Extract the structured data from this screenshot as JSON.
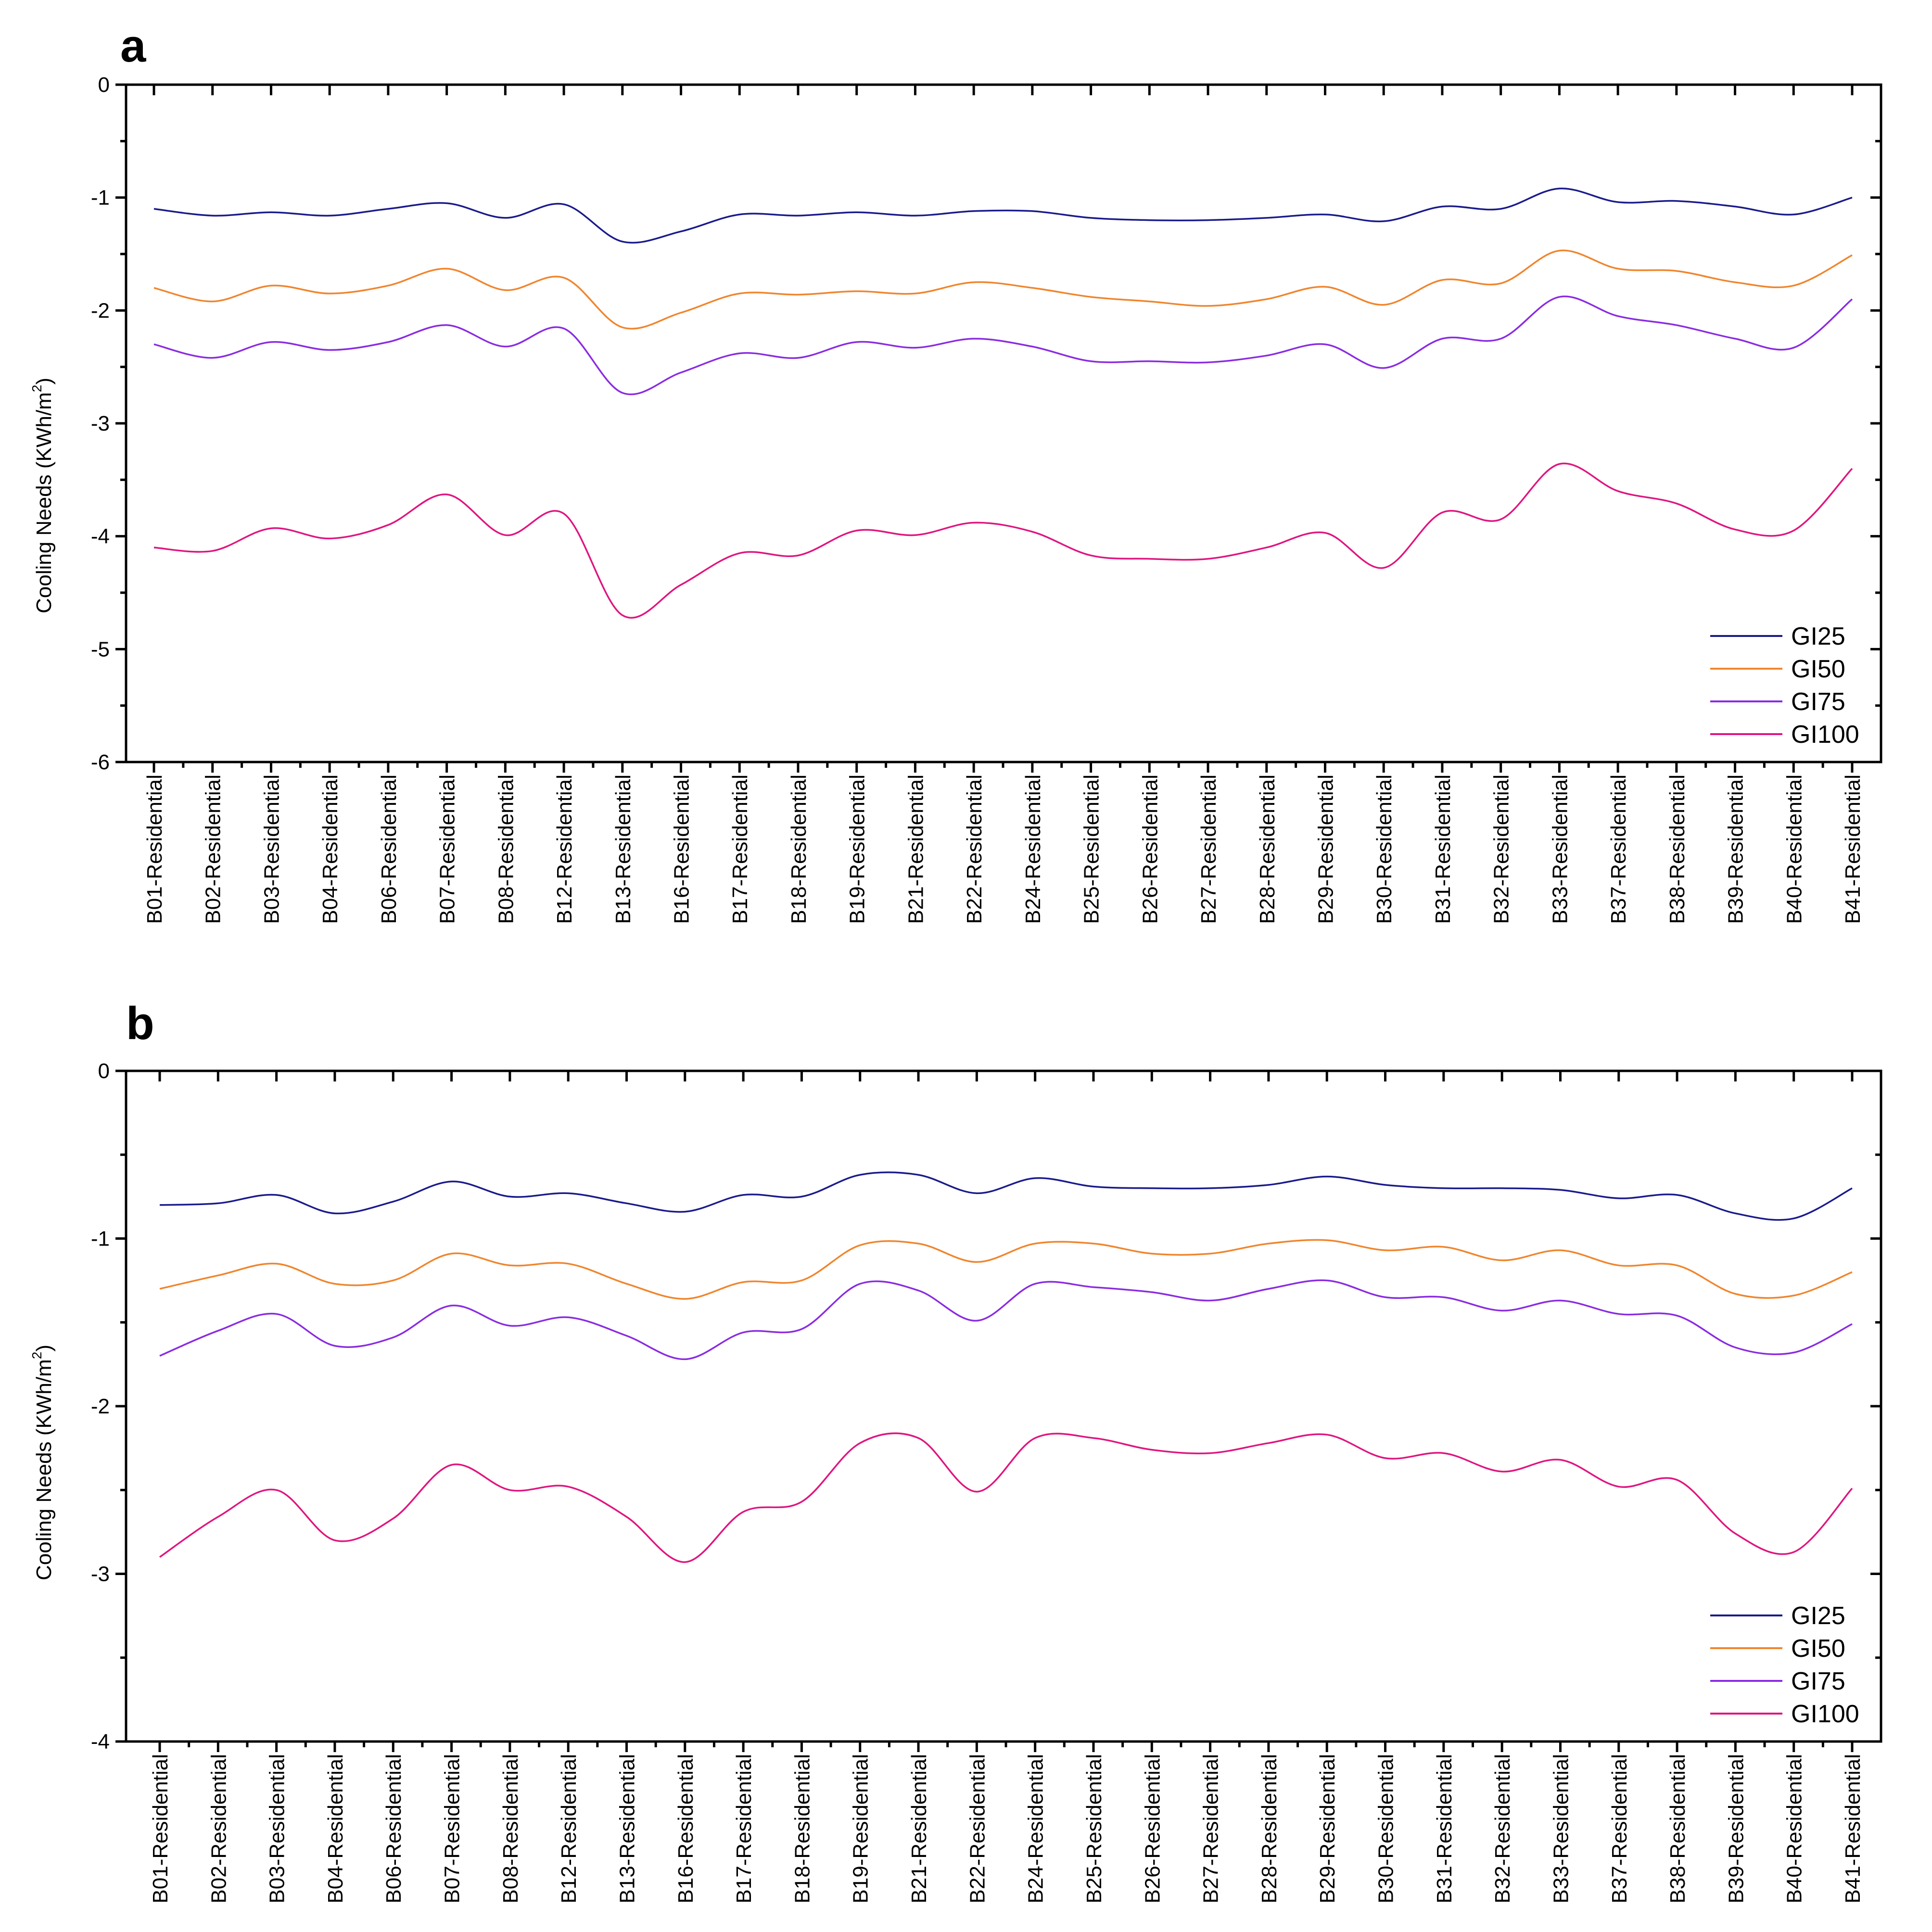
{
  "chart_data": [
    {
      "panel": "a",
      "type": "line",
      "title": "",
      "xlabel": "",
      "ylabel": "Cooling Needs (KWh/m2)",
      "ylabel_main": "Cooling Needs (KWh/m",
      "ylabel_sup": "2",
      "ylabel_close": ")",
      "ylim": [
        -6,
        0
      ],
      "yticks": [
        0,
        -1,
        -2,
        -3,
        -4,
        -5,
        -6
      ],
      "ytick_labels": [
        "0",
        "-1",
        "-2",
        "-3",
        "-4",
        "-5",
        "-6"
      ],
      "grid": false,
      "legend_position": "bottom-right",
      "categories": [
        "B01-Residential",
        "B02-Residential",
        "B03-Residential",
        "B04-Residential",
        "B06-Residential",
        "B07-Residential",
        "B08-Residential",
        "B12-Residential",
        "B13-Residential",
        "B16-Residential",
        "B17-Residential",
        "B18-Residential",
        "B19-Residential",
        "B21-Residential",
        "B22-Residential",
        "B24-Residential",
        "B25-Residential",
        "B26-Residential",
        "B27-Residential",
        "B28-Residential",
        "B29-Residential",
        "B30-Residential",
        "B31-Residential",
        "B32-Residential",
        "B33-Residential",
        "B37-Residential",
        "B38-Residential",
        "B39-Residential",
        "B40-Residential",
        "B41-Residential"
      ],
      "series": [
        {
          "name": "GI25",
          "color": "#1a1a8c",
          "values": [
            -1.1,
            -1.16,
            -1.13,
            -1.16,
            -1.1,
            -1.05,
            -1.18,
            -1.06,
            -1.39,
            -1.3,
            -1.15,
            -1.16,
            -1.13,
            -1.16,
            -1.12,
            -1.12,
            -1.18,
            -1.2,
            -1.2,
            -1.18,
            -1.15,
            -1.21,
            -1.08,
            -1.1,
            -0.92,
            -1.04,
            -1.03,
            -1.08,
            -1.15,
            -1.0
          ]
        },
        {
          "name": "GI50",
          "color": "#f0852d",
          "values": [
            -1.8,
            -1.92,
            -1.78,
            -1.85,
            -1.78,
            -1.63,
            -1.82,
            -1.71,
            -2.15,
            -2.02,
            -1.85,
            -1.86,
            -1.83,
            -1.85,
            -1.75,
            -1.8,
            -1.88,
            -1.92,
            -1.96,
            -1.9,
            -1.79,
            -1.95,
            -1.73,
            -1.76,
            -1.47,
            -1.63,
            -1.65,
            -1.75,
            -1.78,
            -1.51
          ]
        },
        {
          "name": "GI75",
          "color": "#8a2be2",
          "values": [
            -2.3,
            -2.42,
            -2.28,
            -2.35,
            -2.28,
            -2.13,
            -2.32,
            -2.16,
            -2.73,
            -2.55,
            -2.38,
            -2.42,
            -2.28,
            -2.33,
            -2.25,
            -2.32,
            -2.45,
            -2.45,
            -2.46,
            -2.4,
            -2.3,
            -2.51,
            -2.25,
            -2.25,
            -1.88,
            -2.05,
            -2.13,
            -2.25,
            -2.33,
            -1.9
          ]
        },
        {
          "name": "GI100",
          "color": "#e0157f",
          "values": [
            -4.1,
            -4.13,
            -3.93,
            -4.02,
            -3.9,
            -3.63,
            -3.99,
            -3.8,
            -4.7,
            -4.43,
            -4.15,
            -4.17,
            -3.95,
            -3.99,
            -3.88,
            -3.96,
            -4.17,
            -4.2,
            -4.2,
            -4.1,
            -3.97,
            -4.28,
            -3.79,
            -3.85,
            -3.36,
            -3.6,
            -3.71,
            -3.94,
            -3.95,
            -3.4
          ]
        }
      ]
    },
    {
      "panel": "b",
      "type": "line",
      "title": "",
      "xlabel": "",
      "ylabel": "Cooling Needs (KWh/m2)",
      "ylabel_main": "Cooling Needs (KWh/m",
      "ylabel_sup": "2",
      "ylabel_close": ")",
      "ylim": [
        -4,
        0
      ],
      "yticks": [
        0,
        -1,
        -2,
        -3,
        -4
      ],
      "ytick_labels": [
        "0",
        "-1",
        "-2",
        "-3",
        "-4"
      ],
      "grid": false,
      "legend_position": "bottom-right",
      "categories": [
        "B01-Residential",
        "B02-Residential",
        "B03-Residential",
        "B04-Residential",
        "B06-Residential",
        "B07-Residential",
        "B08-Residential",
        "B12-Residential",
        "B13-Residential",
        "B16-Residential",
        "B17-Residential",
        "B18-Residential",
        "B19-Residential",
        "B21-Residential",
        "B22-Residential",
        "B24-Residential",
        "B25-Residential",
        "B26-Residential",
        "B27-Residential",
        "B28-Residential",
        "B29-Residential",
        "B30-Residential",
        "B31-Residential",
        "B32-Residential",
        "B33-Residential",
        "B37-Residential",
        "B38-Residential",
        "B39-Residential",
        "B40-Residential",
        "B41-Residential"
      ],
      "series": [
        {
          "name": "GI25",
          "color": "#1a1a8c",
          "values": [
            -0.8,
            -0.79,
            -0.74,
            -0.85,
            -0.78,
            -0.66,
            -0.75,
            -0.73,
            -0.79,
            -0.84,
            -0.74,
            -0.75,
            -0.62,
            -0.62,
            -0.73,
            -0.64,
            -0.69,
            -0.7,
            -0.7,
            -0.68,
            -0.63,
            -0.68,
            -0.7,
            -0.7,
            -0.71,
            -0.76,
            -0.74,
            -0.85,
            -0.88,
            -0.7
          ]
        },
        {
          "name": "GI50",
          "color": "#f0852d",
          "values": [
            -1.3,
            -1.22,
            -1.15,
            -1.27,
            -1.25,
            -1.09,
            -1.16,
            -1.15,
            -1.27,
            -1.36,
            -1.26,
            -1.25,
            -1.04,
            -1.03,
            -1.14,
            -1.03,
            -1.03,
            -1.09,
            -1.09,
            -1.03,
            -1.01,
            -1.07,
            -1.05,
            -1.13,
            -1.07,
            -1.16,
            -1.16,
            -1.33,
            -1.34,
            -1.2
          ]
        },
        {
          "name": "GI75",
          "color": "#8a2be2",
          "values": [
            -1.7,
            -1.55,
            -1.45,
            -1.64,
            -1.59,
            -1.4,
            -1.52,
            -1.47,
            -1.58,
            -1.72,
            -1.56,
            -1.54,
            -1.27,
            -1.31,
            -1.49,
            -1.27,
            -1.29,
            -1.32,
            -1.37,
            -1.3,
            -1.25,
            -1.35,
            -1.35,
            -1.43,
            -1.37,
            -1.45,
            -1.46,
            -1.65,
            -1.68,
            -1.51
          ]
        },
        {
          "name": "GI100",
          "color": "#e0157f",
          "values": [
            -2.9,
            -2.66,
            -2.5,
            -2.8,
            -2.67,
            -2.35,
            -2.5,
            -2.48,
            -2.66,
            -2.93,
            -2.63,
            -2.57,
            -2.22,
            -2.19,
            -2.51,
            -2.19,
            -2.19,
            -2.26,
            -2.28,
            -2.22,
            -2.17,
            -2.31,
            -2.28,
            -2.39,
            -2.32,
            -2.48,
            -2.44,
            -2.76,
            -2.87,
            -2.49
          ]
        }
      ]
    }
  ]
}
